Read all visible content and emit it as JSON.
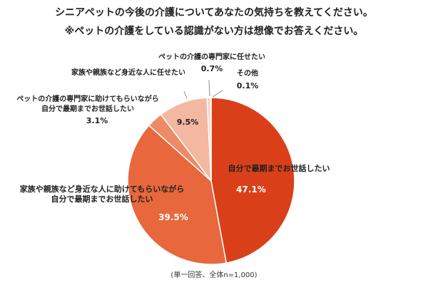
{
  "chart_data": {
    "type": "pie",
    "title_lines": [
      "シニアペットの今後の介護についてあなたの気持ちを教えてください。",
      "※ペットの介護をしている認識がない方は想像でお答えください。"
    ],
    "note": "(単一回答、全体n=1,000)",
    "slices": [
      {
        "label_lines": [
          "自分で最期までお世話したい"
        ],
        "value": 47.1,
        "value_label": "47.1%",
        "color": "#d9401a"
      },
      {
        "label_lines": [
          "家族や親族など身近な人に助けてもらいながら",
          "自分で最期までお世話したい"
        ],
        "value": 39.5,
        "value_label": "39.5%",
        "color": "#e8673c"
      },
      {
        "label_lines": [
          "ペットの介護の専門家に助けてもらいながら",
          "自分で最期までお世話したい"
        ],
        "value": 3.1,
        "value_label": "3.1%",
        "color": "#ed8a67"
      },
      {
        "label_lines": [
          "家族や親族など身近な人に任せたい"
        ],
        "value": 9.5,
        "value_label": "9.5%",
        "color": "#f4b7a0"
      },
      {
        "label_lines": [
          "ペットの介護の専門家に任せたい"
        ],
        "value": 0.7,
        "value_label": "0.7%",
        "color": "#f8d2c4"
      },
      {
        "label_lines": [
          "その他"
        ],
        "value": 0.1,
        "value_label": "0.1%",
        "color": "#fbe4da"
      }
    ]
  }
}
